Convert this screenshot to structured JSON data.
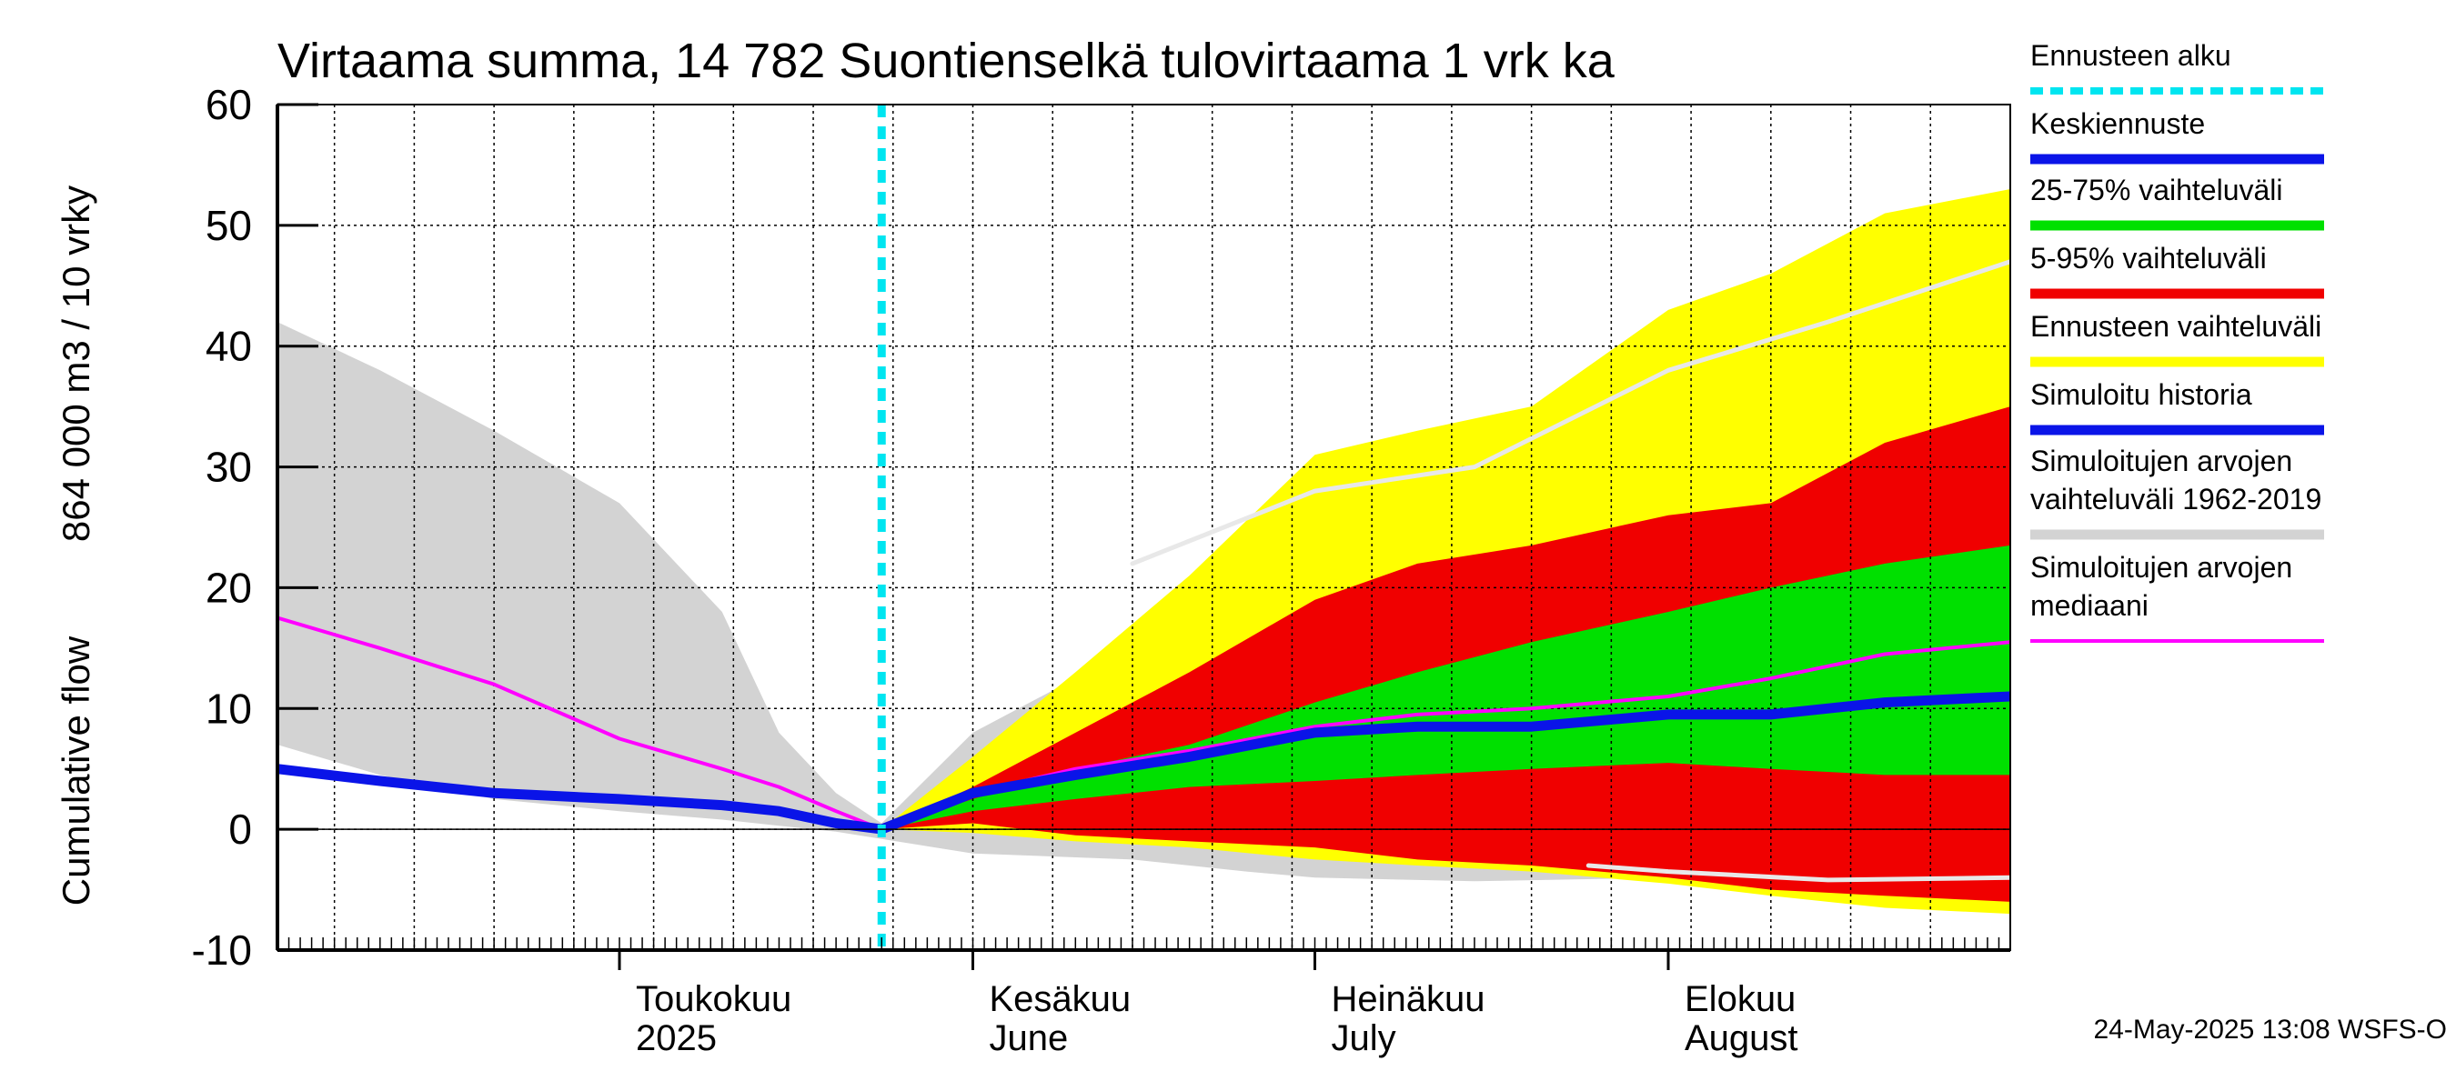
{
  "chart_data": {
    "type": "area",
    "title": "Virtaama summa, 14 782 Suontienselkä tulovirtaama 1 vrk ka",
    "ylabel_line1": "864 000 m3 / 10 vrky",
    "ylabel_line2": "Cumulative flow",
    "ylim": [
      -10,
      60
    ],
    "yticks": [
      "-10",
      "0",
      "10",
      "20",
      "30",
      "40",
      "50",
      "60"
    ],
    "xlim": [
      "2025-04-01",
      "2025-08-31"
    ],
    "month_labels": [
      {
        "date": "2025-05-01",
        "line1": "Toukokuu",
        "line2": "2025"
      },
      {
        "date": "2025-06-01",
        "line1": "Kesäkuu",
        "line2": "June"
      },
      {
        "date": "2025-07-01",
        "line1": "Heinäkuu",
        "line2": "July"
      },
      {
        "date": "2025-08-01",
        "line1": "Elokuu",
        "line2": "August"
      }
    ],
    "forecast_start": "2025-05-24",
    "grid": true,
    "legend_position": "right",
    "colors": {
      "forecast_start": "#00e5f0",
      "median_forecast": "#0a14e8",
      "iqr": "#00e000",
      "p5_95": "#f00000",
      "forecast_range": "#ffff00",
      "simulated_history": "#0a14e8",
      "historical_range": "#d3d3d3",
      "historical_median": "#ff00ff",
      "gridline": "#000000"
    },
    "series": [
      {
        "key": "hist_range",
        "name": "Simuloitujen arvojen vaihteluväli 1962-2019",
        "x": [
          "2025-04-01",
          "2025-04-10",
          "2025-04-20",
          "2025-05-01",
          "2025-05-10",
          "2025-05-15",
          "2025-05-20",
          "2025-05-24",
          "2025-06-01",
          "2025-06-15",
          "2025-06-25",
          "2025-07-01",
          "2025-07-15",
          "2025-08-01",
          "2025-08-15",
          "2025-08-31"
        ],
        "upper": [
          42,
          38,
          33,
          27,
          18,
          8,
          3,
          0.5,
          8,
          15,
          24,
          28,
          31,
          35,
          39,
          47
        ],
        "lower": [
          7,
          4.5,
          2.5,
          1.5,
          0.8,
          0.3,
          -0.2,
          -0.8,
          -2,
          -2.5,
          -3.5,
          -4,
          -4.3,
          -4,
          -4,
          -4
        ]
      },
      {
        "key": "forecast_range",
        "name": "Ennusteen vaihteluväli",
        "x": [
          "2025-05-24",
          "2025-06-01",
          "2025-06-10",
          "2025-06-20",
          "2025-07-01",
          "2025-07-10",
          "2025-07-20",
          "2025-08-01",
          "2025-08-10",
          "2025-08-20",
          "2025-08-31"
        ],
        "upper": [
          0,
          6,
          13,
          21,
          31,
          33,
          35,
          43,
          46,
          51,
          53
        ],
        "lower": [
          0,
          -0.3,
          -1,
          -1.5,
          -2.5,
          -3,
          -3.5,
          -4.5,
          -5.5,
          -6.5,
          -7
        ]
      },
      {
        "key": "p5_95",
        "name": "5-95% vaihteluväli",
        "x": [
          "2025-05-24",
          "2025-06-01",
          "2025-06-10",
          "2025-06-20",
          "2025-07-01",
          "2025-07-10",
          "2025-07-20",
          "2025-08-01",
          "2025-08-10",
          "2025-08-20",
          "2025-08-31"
        ],
        "upper": [
          0,
          3.5,
          8,
          13,
          19,
          22,
          23.5,
          26,
          27,
          32,
          35
        ],
        "lower": [
          0,
          0.5,
          -0.5,
          -1,
          -1.5,
          -2.5,
          -3,
          -4,
          -5,
          -5.5,
          -6
        ]
      },
      {
        "key": "iqr",
        "name": "25-75% vaihteluväli",
        "x": [
          "2025-05-24",
          "2025-06-01",
          "2025-06-10",
          "2025-06-20",
          "2025-07-01",
          "2025-07-10",
          "2025-07-20",
          "2025-08-01",
          "2025-08-10",
          "2025-08-20",
          "2025-08-31"
        ],
        "upper": [
          0,
          2.5,
          5,
          7,
          10.5,
          13,
          15.5,
          18,
          20,
          22,
          23.5
        ],
        "lower": [
          0,
          1.5,
          2.5,
          3.5,
          4,
          4.5,
          5,
          5.5,
          5,
          4.5,
          4.5
        ]
      },
      {
        "key": "hist_median",
        "name": "Simuloitujen arvojen mediaani",
        "x": [
          "2025-04-01",
          "2025-04-10",
          "2025-04-20",
          "2025-05-01",
          "2025-05-10",
          "2025-05-15",
          "2025-05-20",
          "2025-05-24",
          "2025-06-01",
          "2025-06-10",
          "2025-06-20",
          "2025-07-01",
          "2025-07-10",
          "2025-07-20",
          "2025-08-01",
          "2025-08-10",
          "2025-08-20",
          "2025-08-31"
        ],
        "y": [
          17.5,
          15,
          12,
          7.5,
          5,
          3.5,
          1.5,
          0,
          3,
          5,
          6.5,
          8.5,
          9.5,
          10,
          11,
          12.5,
          14.5,
          15.5
        ]
      },
      {
        "key": "hist_range_median_line",
        "name": "",
        "x": [
          "2025-06-15",
          "2025-07-01",
          "2025-07-15",
          "2025-08-01",
          "2025-08-15",
          "2025-08-31"
        ],
        "y": [
          22,
          28,
          30,
          38,
          42,
          47
        ]
      },
      {
        "key": "hist_range_low_line",
        "name": "",
        "x": [
          "2025-07-25",
          "2025-08-01",
          "2025-08-15",
          "2025-08-31"
        ],
        "y": [
          -3,
          -3.5,
          -4.2,
          -4
        ]
      },
      {
        "key": "simulated_history",
        "name": "Simuloitu historia",
        "x": [
          "2025-04-01",
          "2025-04-10",
          "2025-04-20",
          "2025-05-01",
          "2025-05-10",
          "2025-05-15",
          "2025-05-20",
          "2025-05-24"
        ],
        "y": [
          5,
          4,
          3,
          2.5,
          2,
          1.5,
          0.5,
          0
        ]
      },
      {
        "key": "median_forecast",
        "name": "Keskiennuste",
        "x": [
          "2025-05-24",
          "2025-06-01",
          "2025-06-10",
          "2025-06-20",
          "2025-07-01",
          "2025-07-10",
          "2025-07-20",
          "2025-08-01",
          "2025-08-10",
          "2025-08-20",
          "2025-08-31"
        ],
        "y": [
          0,
          3,
          4.5,
          6,
          8,
          8.5,
          8.5,
          9.5,
          9.5,
          10.5,
          11
        ]
      }
    ],
    "legend": [
      {
        "label": "Ennusteen alku",
        "style": "dashed",
        "color_key": "forecast_start"
      },
      {
        "label": "Keskiennuste",
        "style": "line",
        "color_key": "median_forecast"
      },
      {
        "label": "25-75% vaihteluväli",
        "style": "line",
        "color_key": "iqr"
      },
      {
        "label": "5-95% vaihteluväli",
        "style": "line",
        "color_key": "p5_95"
      },
      {
        "label": "Ennusteen vaihteluväli",
        "style": "line",
        "color_key": "forecast_range"
      },
      {
        "label": "Simuloitu historia",
        "style": "line",
        "color_key": "simulated_history"
      },
      {
        "label": "Simuloitujen arvojen vaihteluväli 1962-2019",
        "line1": "Simuloitujen arvojen",
        "line2": "vaihteluväli 1962-2019",
        "style": "line",
        "color_key": "historical_range"
      },
      {
        "label": "Simuloitujen arvojen mediaani",
        "line1": "Simuloitujen arvojen",
        "line2": "mediaani",
        "style": "thin",
        "color_key": "historical_median"
      }
    ],
    "footer": "24-May-2025 13:08 WSFS-O"
  }
}
